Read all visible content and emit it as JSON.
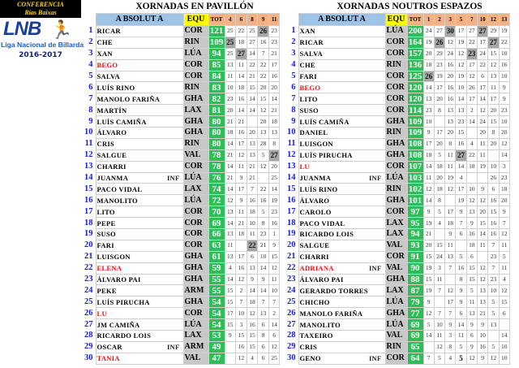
{
  "logo": {
    "conference": "CONFERENCIA",
    "region": "Rías Baixas",
    "brand": "LNB",
    "league": "Liga Nacional de Billarda",
    "season": "2016-2017"
  },
  "colors": {
    "header_name": "#9dc3e6",
    "header_team": "#ffff00",
    "header_rounds": "#f4b183",
    "team_col": "#c8c8c8",
    "total": "#2ebd59",
    "best": "#a6a6a6",
    "rank": "#1a22d8",
    "female": "#e01010"
  },
  "pavillon": {
    "title": "XORNADAS EN PAVILLÓN",
    "headers": {
      "name": "A BSOLUT A",
      "team": "EQU",
      "total": "TOT",
      "rounds": [
        "4",
        "6",
        "8",
        "9",
        "11"
      ]
    },
    "rows": [
      {
        "rank": "1",
        "name": "RICAR",
        "equ": "COR",
        "tot": "121",
        "s": [
          "25",
          "22",
          "25",
          "26",
          "23"
        ],
        "best": [
          3
        ]
      },
      {
        "rank": "2",
        "name": "CHE",
        "equ": "RIN",
        "tot": "109",
        "s": [
          "25",
          "18",
          "27",
          "16",
          "23"
        ],
        "best": [
          0
        ]
      },
      {
        "rank": "3",
        "name": "XAN",
        "equ": "LÚA",
        "tot": "94",
        "s": [
          "25",
          "27",
          "14",
          "7",
          "21"
        ],
        "best": [
          1
        ]
      },
      {
        "rank": "4",
        "name": "BEGO",
        "red": true,
        "equ": "COR",
        "tot": "85",
        "s": [
          "13",
          "11",
          "22",
          "22",
          "17"
        ]
      },
      {
        "rank": "5",
        "name": "SALVA",
        "equ": "COR",
        "tot": "84",
        "s": [
          "11",
          "14",
          "21",
          "22",
          "16"
        ]
      },
      {
        "rank": "6",
        "name": "LUÍS RINO",
        "equ": "RIN",
        "tot": "83",
        "s": [
          "10",
          "18",
          "15",
          "20",
          "20"
        ]
      },
      {
        "rank": "7",
        "name": "MANOLO FARIÑA",
        "equ": "GHA",
        "tot": "82",
        "s": [
          "23",
          "16",
          "14",
          "15",
          "14"
        ]
      },
      {
        "rank": "8",
        "name": "MARTÍN",
        "equ": "LAX",
        "tot": "81",
        "s": [
          "20",
          "14",
          "14",
          "12",
          "21"
        ]
      },
      {
        "rank": "9",
        "name": "LUÍS CAMIÑA",
        "equ": "GHA",
        "tot": "80",
        "s": [
          "21",
          "21",
          "",
          "20",
          "18"
        ]
      },
      {
        "rank": "10",
        "name": "ÁLVARO",
        "equ": "GHA",
        "tot": "80",
        "s": [
          "18",
          "16",
          "20",
          "13",
          "13"
        ]
      },
      {
        "rank": "11",
        "name": "CRIS",
        "equ": "RIN",
        "tot": "80",
        "s": [
          "14",
          "17",
          "13",
          "28",
          "8"
        ]
      },
      {
        "rank": "12",
        "name": "SALGUE",
        "equ": "VAL",
        "tot": "78",
        "s": [
          "21",
          "12",
          "13",
          "5",
          "27"
        ],
        "best": [
          4
        ]
      },
      {
        "rank": "13",
        "name": "CHARRI",
        "equ": "COR",
        "tot": "78",
        "s": [
          "14",
          "11",
          "21",
          "12",
          "20"
        ]
      },
      {
        "rank": "14",
        "name": "JUANMA",
        "inf": "INF",
        "equ": "LÚA",
        "tot": "76",
        "s": [
          "21",
          "9",
          "21",
          "",
          "25"
        ]
      },
      {
        "rank": "15",
        "name": "PACO VIDAL",
        "equ": "LAX",
        "tot": "74",
        "s": [
          "14",
          "17",
          "7",
          "22",
          "14"
        ]
      },
      {
        "rank": "16",
        "name": "MANOLITO",
        "equ": "LÚA",
        "tot": "72",
        "s": [
          "12",
          "9",
          "16",
          "16",
          "19"
        ]
      },
      {
        "rank": "17",
        "name": "LITO",
        "equ": "COR",
        "tot": "70",
        "s": [
          "13",
          "11",
          "18",
          "5",
          "23"
        ]
      },
      {
        "rank": "18",
        "name": "PEPE",
        "equ": "COR",
        "tot": "69",
        "s": [
          "14",
          "21",
          "10",
          "8",
          "16"
        ]
      },
      {
        "rank": "19",
        "name": "SUSO",
        "equ": "COR",
        "tot": "66",
        "s": [
          "13",
          "18",
          "11",
          "23",
          "1"
        ]
      },
      {
        "rank": "20",
        "name": "FARI",
        "equ": "COR",
        "tot": "63",
        "s": [
          "11",
          "",
          "22",
          "21",
          "9"
        ],
        "best": [
          2
        ]
      },
      {
        "rank": "21",
        "name": "LUISGON",
        "equ": "GHA",
        "tot": "61",
        "s": [
          "13",
          "17",
          "6",
          "10",
          "15"
        ]
      },
      {
        "rank": "22",
        "name": "ELENA",
        "red": true,
        "equ": "GHA",
        "tot": "59",
        "s": [
          "4",
          "16",
          "13",
          "14",
          "12"
        ]
      },
      {
        "rank": "23",
        "name": "ÁLVARO PAI",
        "equ": "GHA",
        "tot": "55",
        "s": [
          "14",
          "12",
          "9",
          "9",
          "11"
        ]
      },
      {
        "rank": "24",
        "name": "PEKE",
        "equ": "ARM",
        "tot": "55",
        "s": [
          "15",
          "2",
          "14",
          "14",
          "10"
        ]
      },
      {
        "rank": "25",
        "name": "LUÍS PIRUCHA",
        "equ": "GHA",
        "tot": "54",
        "s": [
          "15",
          "7",
          "18",
          "7",
          "7"
        ]
      },
      {
        "rank": "26",
        "name": "LU",
        "red": true,
        "equ": "COR",
        "tot": "54",
        "s": [
          "17",
          "10",
          "12",
          "13",
          "2"
        ]
      },
      {
        "rank": "27",
        "name": "JM CAMIÑA",
        "equ": "LÚA",
        "tot": "54",
        "s": [
          "15",
          "3",
          "16",
          "6",
          "14"
        ]
      },
      {
        "rank": "28",
        "name": "RICARDO LOIS",
        "equ": "LAX",
        "tot": "53",
        "s": [
          "9",
          "15",
          "15",
          "8",
          "6"
        ]
      },
      {
        "rank": "29",
        "name": "OSCAR",
        "inf": "INF",
        "equ": "ARM",
        "tot": "49",
        "s": [
          "",
          "16",
          "15",
          "6",
          "12"
        ]
      },
      {
        "rank": "30",
        "name": "TANIA",
        "red": true,
        "equ": "VAL",
        "tot": "47",
        "s": [
          "",
          "12",
          "4",
          "6",
          "25"
        ]
      }
    ]
  },
  "espazos": {
    "title": "XORNADAS NOUTROS ESPAZOS",
    "headers": {
      "name": "A BSOLUT A",
      "team": "EQU",
      "total": "TOT",
      "rounds": [
        "1",
        "2",
        "3",
        "5",
        "7",
        "10",
        "12",
        "13"
      ]
    },
    "rows": [
      {
        "rank": "1",
        "name": "XAN",
        "equ": "LÚA",
        "tot": "200",
        "s": [
          "24",
          "27",
          "30",
          "17",
          "27",
          "27",
          "29",
          "19"
        ],
        "best": [
          2,
          5
        ]
      },
      {
        "rank": "2",
        "name": "RICAR",
        "equ": "COR",
        "tot": "164",
        "s": [
          "19",
          "26",
          "12",
          "19",
          "22",
          "17",
          "27",
          "22"
        ],
        "best": [
          1,
          6
        ]
      },
      {
        "rank": "3",
        "name": "SALVA",
        "equ": "COR",
        "tot": "157",
        "s": [
          "20",
          "29",
          "24",
          "12",
          "23",
          "24",
          "15",
          "10"
        ],
        "best": [
          4
        ]
      },
      {
        "rank": "4",
        "name": "CHE",
        "equ": "RIN",
        "tot": "136",
        "s": [
          "18",
          "23",
          "16",
          "12",
          "17",
          "22",
          "12",
          "16"
        ]
      },
      {
        "rank": "5",
        "name": "FARI",
        "equ": "COR",
        "tot": "125",
        "s": [
          "26",
          "19",
          "20",
          "19",
          "12",
          "6",
          "13",
          "10"
        ],
        "best": [
          0
        ]
      },
      {
        "rank": "6",
        "name": "BEGO",
        "red": true,
        "equ": "COR",
        "tot": "120",
        "s": [
          "14",
          "17",
          "16",
          "10",
          "26",
          "17",
          "11",
          "9"
        ]
      },
      {
        "rank": "7",
        "name": "LITO",
        "equ": "COR",
        "tot": "120",
        "s": [
          "13",
          "20",
          "16",
          "14",
          "17",
          "14",
          "17",
          "9"
        ]
      },
      {
        "rank": "8",
        "name": "SUSO",
        "equ": "COR",
        "tot": "114",
        "s": [
          "23",
          "8",
          "13",
          "13",
          "2",
          "12",
          "20",
          "23"
        ]
      },
      {
        "rank": "9",
        "name": "LUÍS CAMIÑA",
        "equ": "GHA",
        "tot": "109",
        "s": [
          "10",
          "",
          "13",
          "23",
          "14",
          "24",
          "15",
          "10"
        ]
      },
      {
        "rank": "10",
        "name": "DANIEL",
        "equ": "RIN",
        "tot": "109",
        "s": [
          "9",
          "17",
          "20",
          "15",
          "",
          "20",
          "8",
          "20"
        ]
      },
      {
        "rank": "11",
        "name": "LUISGON",
        "equ": "GHA",
        "tot": "108",
        "s": [
          "17",
          "20",
          "8",
          "16",
          "4",
          "11",
          "20",
          "12"
        ]
      },
      {
        "rank": "12",
        "name": "LUÍS PIRUCHA",
        "equ": "GHA",
        "tot": "108",
        "s": [
          "18",
          "5",
          "11",
          "27",
          "22",
          "11",
          "",
          "14"
        ],
        "best": [
          3
        ]
      },
      {
        "rank": "13",
        "name": "LU",
        "red": true,
        "equ": "COR",
        "tot": "107",
        "s": [
          "14",
          "18",
          "11",
          "14",
          "18",
          "19",
          "10",
          "3"
        ]
      },
      {
        "rank": "14",
        "name": "JUANMA",
        "inf": "INF",
        "equ": "LÚA",
        "tot": "103",
        "s": [
          "11",
          "20",
          "19",
          "4",
          "",
          "",
          "26",
          "23"
        ]
      },
      {
        "rank": "15",
        "name": "LUÍS RINO",
        "equ": "RIN",
        "tot": "102",
        "s": [
          "12",
          "18",
          "12",
          "17",
          "10",
          "9",
          "6",
          "18"
        ]
      },
      {
        "rank": "16",
        "name": "ÁLVARO",
        "equ": "GHA",
        "tot": "101",
        "s": [
          "14",
          "8",
          "",
          "19",
          "12",
          "12",
          "16",
          "20"
        ]
      },
      {
        "rank": "17",
        "name": "CAROLO",
        "equ": "COR",
        "tot": "97",
        "s": [
          "9",
          "5",
          "17",
          "9",
          "13",
          "20",
          "15",
          "9"
        ]
      },
      {
        "rank": "18",
        "name": "PACO VIDAL",
        "equ": "LAX",
        "tot": "95",
        "s": [
          "19",
          "4",
          "18",
          "7",
          "9",
          "15",
          "16",
          "7"
        ]
      },
      {
        "rank": "19",
        "name": "RICARDO LOIS",
        "equ": "LAX",
        "tot": "94",
        "s": [
          "21",
          "",
          "9",
          "6",
          "16",
          "14",
          "16",
          "12"
        ]
      },
      {
        "rank": "20",
        "name": "SALGUE",
        "equ": "VAL",
        "tot": "93",
        "s": [
          "20",
          "15",
          "11",
          "",
          "18",
          "11",
          "7",
          "11"
        ]
      },
      {
        "rank": "21",
        "name": "CHARRI",
        "equ": "COR",
        "tot": "91",
        "s": [
          "15",
          "24",
          "13",
          "5",
          "6",
          "",
          "23",
          "5"
        ]
      },
      {
        "rank": "22",
        "name": "ADRIANA",
        "inf": "INF",
        "red": true,
        "equ": "VAL",
        "tot": "90",
        "s": [
          "19",
          "3",
          "7",
          "16",
          "15",
          "12",
          "7",
          "11"
        ]
      },
      {
        "rank": "23",
        "name": "ÁLVARO PAI",
        "equ": "GHA",
        "tot": "88",
        "s": [
          "15",
          "11",
          "",
          "8",
          "15",
          "12",
          "23",
          "4"
        ]
      },
      {
        "rank": "24",
        "name": "GERARDO TORRES",
        "equ": "LAX",
        "tot": "87",
        "s": [
          "19",
          "7",
          "12",
          "9",
          "5",
          "13",
          "10",
          "12"
        ]
      },
      {
        "rank": "25",
        "name": "CHICHO",
        "equ": "LÚA",
        "tot": "79",
        "s": [
          "9",
          "",
          "17",
          "9",
          "11",
          "13",
          "5",
          "15"
        ]
      },
      {
        "rank": "26",
        "name": "MANOLO FARIÑA",
        "equ": "GHA",
        "tot": "77",
        "s": [
          "12",
          "7",
          "7",
          "6",
          "13",
          "21",
          "5",
          "6"
        ]
      },
      {
        "rank": "27",
        "name": "MANOLITO",
        "equ": "LÚA",
        "tot": "69",
        "s": [
          "5",
          "10",
          "9",
          "14",
          "9",
          "9",
          "13",
          ""
        ]
      },
      {
        "rank": "28",
        "name": "TAXEIRO",
        "equ": "VAL",
        "tot": "69",
        "s": [
          "14",
          "11",
          "3",
          "11",
          "6",
          "10",
          "",
          "14"
        ]
      },
      {
        "rank": "29",
        "name": "CRIS",
        "equ": "RIN",
        "tot": "65",
        "s": [
          "",
          "12",
          "8",
          "5",
          "9",
          "16",
          "5",
          "10"
        ]
      },
      {
        "rank": "30",
        "name": "GENO",
        "inf": "INF",
        "equ": "COR",
        "tot": "64",
        "s": [
          "7",
          "5",
          "4",
          "5",
          "12",
          "9",
          "12",
          "10"
        ],
        "bold": [
          3
        ]
      }
    ]
  }
}
